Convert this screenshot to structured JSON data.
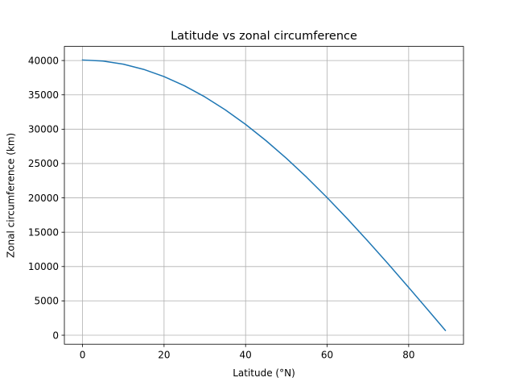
{
  "chart_data": {
    "type": "line",
    "title": "Latitude vs zonal circumference",
    "xlabel": "Latitude (°N)",
    "ylabel": "Zonal circumference (km)",
    "xlim": [
      -4.45,
      93.45
    ],
    "ylim": [
      -1311,
      42053
    ],
    "xticks": [
      0,
      20,
      40,
      60,
      80
    ],
    "yticks": [
      0,
      5000,
      10000,
      15000,
      20000,
      25000,
      30000,
      35000,
      40000
    ],
    "xtick_labels": [
      "0",
      "20",
      "40",
      "60",
      "80"
    ],
    "ytick_labels": [
      "0",
      "5000",
      "10000",
      "15000",
      "20000",
      "25000",
      "30000",
      "35000",
      "40000"
    ],
    "grid": true,
    "legend": "none",
    "series": [
      {
        "color": "#1f77b4",
        "x": [
          0,
          5,
          10,
          15,
          20,
          25,
          30,
          35,
          40,
          45,
          50,
          55,
          60,
          65,
          70,
          75,
          80,
          85,
          89
        ],
        "y": [
          40075,
          39923,
          39466,
          38709,
          37658,
          36320,
          34706,
          32827,
          30699,
          28337,
          25760,
          22986,
          20038,
          16936,
          13706,
          10372,
          6959,
          3493,
          699
        ]
      }
    ]
  }
}
